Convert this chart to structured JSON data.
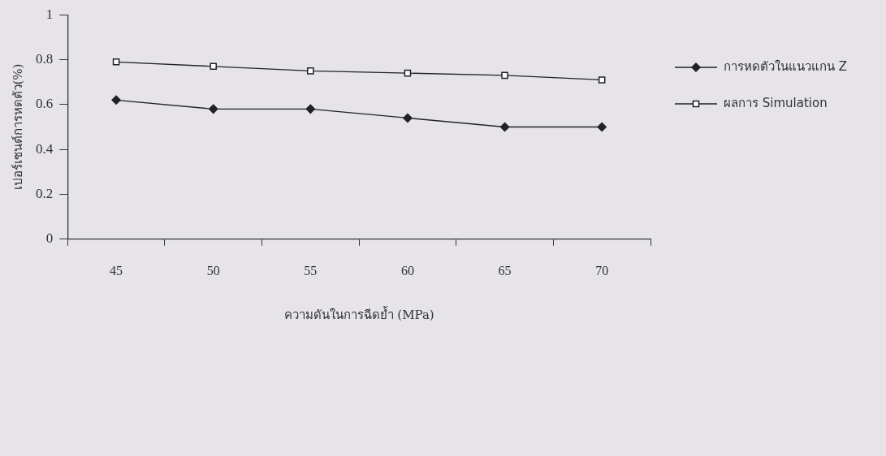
{
  "chart_data": {
    "type": "line",
    "xlabel": "ความดันในการฉีดย้ำ (MPa)",
    "ylabel": "เปอร์เซนต์การหดตัว(%)",
    "categories": [
      "45",
      "50",
      "55",
      "60",
      "65",
      "70"
    ],
    "series": [
      {
        "name": "การหดตัวในแนวแกน Z",
        "color": "#222222",
        "marker": "diamond",
        "values": [
          0.62,
          0.58,
          0.58,
          0.54,
          0.5,
          0.5
        ]
      },
      {
        "name": "ผลการ Simulation",
        "color": "#222222",
        "marker": "square",
        "values": [
          0.79,
          0.77,
          0.75,
          0.74,
          0.73,
          0.71
        ]
      }
    ],
    "ylim": [
      0,
      1
    ],
    "yticks": [
      0,
      0.2,
      0.4,
      0.6,
      0.8,
      1
    ],
    "grid": false,
    "legend": "right",
    "line_style": "solid"
  }
}
